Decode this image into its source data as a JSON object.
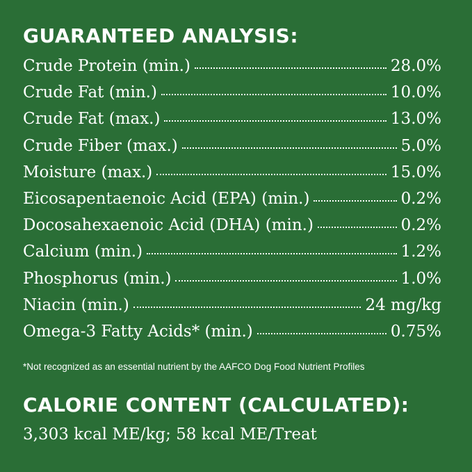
{
  "analysis": {
    "title": "GUARANTEED ANALYSIS:",
    "rows": [
      {
        "label": "Crude Protein (min.)",
        "value": "28.0%"
      },
      {
        "label": "Crude Fat (min.)",
        "value": "10.0%"
      },
      {
        "label": "Crude Fat (max.)",
        "value": "13.0%"
      },
      {
        "label": "Crude Fiber (max.)",
        "value": "5.0%"
      },
      {
        "label": "Moisture (max.)",
        "value": "15.0%"
      },
      {
        "label": "Eicosapentaenoic Acid (EPA) (min.)",
        "value": "0.2%"
      },
      {
        "label": "Docosahexaenoic Acid (DHA) (min.)",
        "value": "0.2%"
      },
      {
        "label": "Calcium (min.)",
        "value": "1.2%"
      },
      {
        "label": "Phosphorus (min.)",
        "value": "1.0%"
      },
      {
        "label": "Niacin (min.)",
        "value": "24 mg/kg"
      },
      {
        "label": "Omega-3 Fatty Acids* (min.)",
        "value": "0.75%"
      }
    ],
    "footnote": "*Not recognized as an essential nutrient by the AAFCO Dog Food Nutrient Profiles"
  },
  "calorie": {
    "title": "CALORIE CONTENT (CALCULATED):",
    "value": "3,303 kcal ME/kg; 58 kcal ME/Treat"
  },
  "colors": {
    "background": "#2a6e36",
    "text": "#ffffff"
  }
}
